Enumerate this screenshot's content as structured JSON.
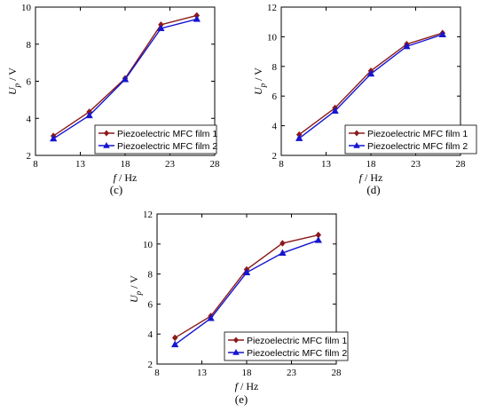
{
  "chart_data": [
    {
      "type": "line",
      "panel_label": "(c)",
      "xlabel": "f / Hz",
      "xlabel_var": "f",
      "xlabel_unit": " / Hz",
      "ylabel_var": "U",
      "ylabel_sub": "p",
      "ylabel_unit": " / V",
      "xlim": [
        8,
        28
      ],
      "ylim": [
        2,
        10
      ],
      "xticks": [
        8,
        13,
        18,
        23,
        28
      ],
      "yticks": [
        2,
        4,
        6,
        8,
        10
      ],
      "legend_position": "bottom-right",
      "x": [
        10,
        14,
        18,
        22,
        26
      ],
      "series": [
        {
          "name": "Piezoelectric MFC film 1",
          "color": "#8B1A1A",
          "marker": "diamond",
          "values": [
            3.05,
            4.35,
            6.15,
            9.05,
            9.55
          ]
        },
        {
          "name": "Piezoelectric MFC film 2",
          "color": "#1515D0",
          "marker": "triangle",
          "values": [
            2.9,
            4.15,
            6.1,
            8.85,
            9.35
          ]
        }
      ]
    },
    {
      "type": "line",
      "panel_label": "(d)",
      "xlabel": "f / Hz",
      "xlabel_var": "f",
      "xlabel_unit": " / Hz",
      "ylabel_var": "U",
      "ylabel_sub": "p",
      "ylabel_unit": " / V",
      "xlim": [
        8,
        28
      ],
      "ylim": [
        2,
        12
      ],
      "xticks": [
        8,
        13,
        18,
        23,
        28
      ],
      "yticks": [
        2,
        4,
        6,
        8,
        10,
        12
      ],
      "legend_position": "bottom-right",
      "x": [
        10,
        14,
        18,
        22,
        26
      ],
      "series": [
        {
          "name": "Piezoelectric MFC film 1",
          "color": "#8B1A1A",
          "marker": "diamond",
          "values": [
            3.4,
            5.2,
            7.7,
            9.5,
            10.25
          ]
        },
        {
          "name": "Piezoelectric MFC film 2",
          "color": "#1515D0",
          "marker": "triangle",
          "values": [
            3.15,
            5.0,
            7.5,
            9.35,
            10.15
          ]
        }
      ]
    },
    {
      "type": "line",
      "panel_label": "(e)",
      "xlabel": "f / Hz",
      "xlabel_var": "f",
      "xlabel_unit": " / Hz",
      "ylabel_var": "U",
      "ylabel_sub": "p",
      "ylabel_unit": " / V",
      "xlim": [
        8,
        28
      ],
      "ylim": [
        2,
        12
      ],
      "xticks": [
        8,
        13,
        18,
        23,
        28
      ],
      "yticks": [
        2,
        4,
        6,
        8,
        10,
        12
      ],
      "legend_position": "bottom-right",
      "x": [
        10,
        14,
        18,
        22,
        26
      ],
      "series": [
        {
          "name": "Piezoelectric MFC film 1",
          "color": "#8B1A1A",
          "marker": "diamond",
          "values": [
            3.75,
            5.2,
            8.3,
            10.05,
            10.6
          ]
        },
        {
          "name": "Piezoelectric MFC film 2",
          "color": "#1515D0",
          "marker": "triangle",
          "values": [
            3.3,
            5.05,
            8.1,
            9.4,
            10.25
          ]
        }
      ]
    }
  ]
}
